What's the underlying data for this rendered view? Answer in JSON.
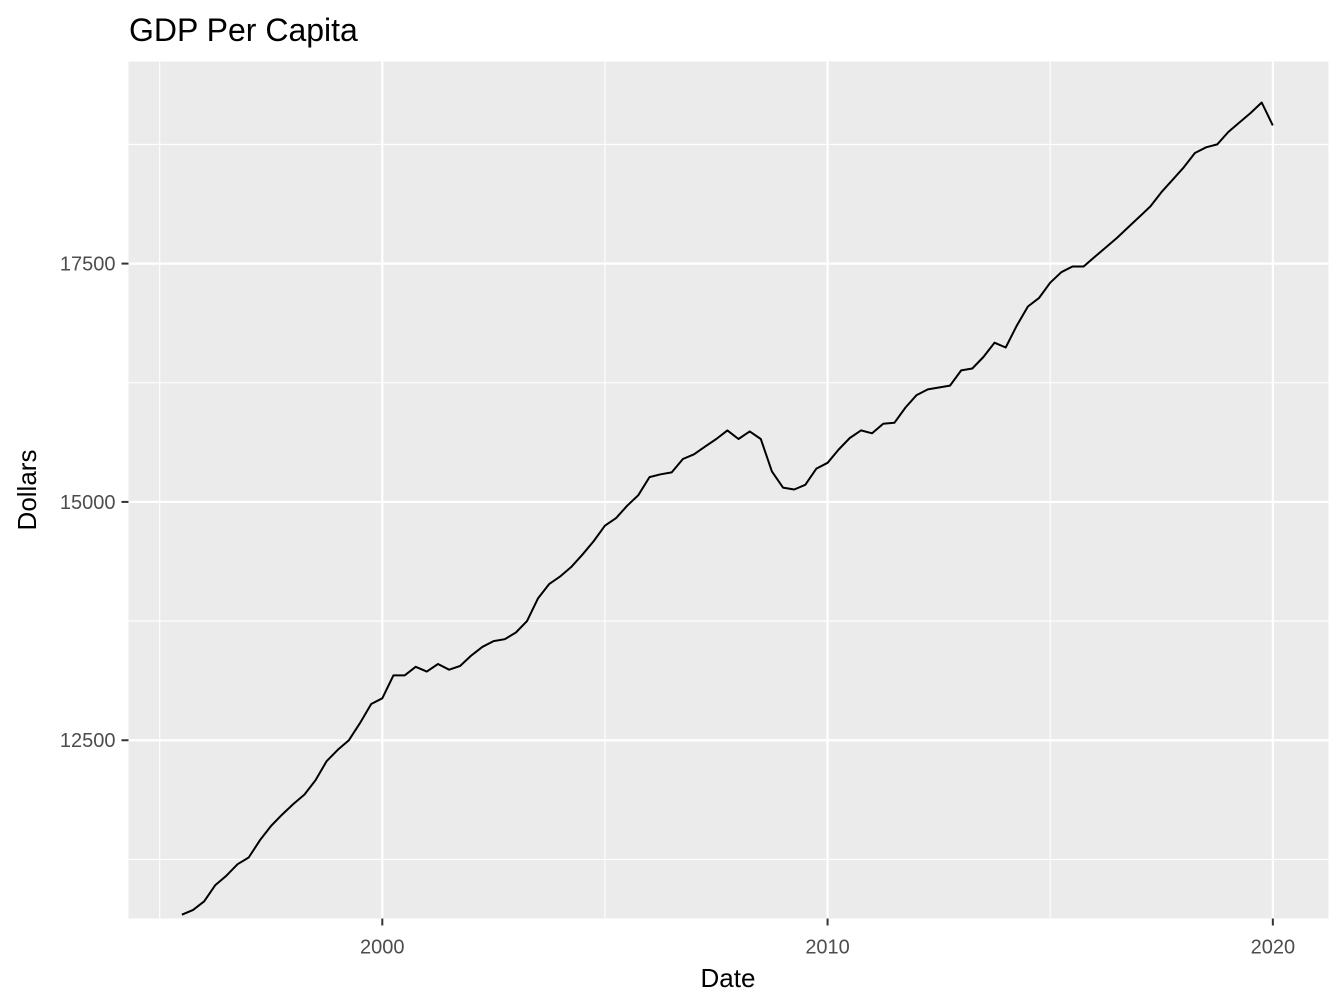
{
  "chart_data": {
    "type": "line",
    "title": "GDP Per Capita",
    "xlabel": "Date",
    "ylabel": "Dollars",
    "x_ticks": [
      2000,
      2010,
      2020
    ],
    "y_ticks": [
      12500,
      15000,
      17500
    ],
    "x_tick_labels": [
      "2000",
      "2010",
      "2020"
    ],
    "y_tick_labels": [
      "12500",
      "15000",
      "17500"
    ],
    "xlim": [
      1994.3,
      2021.25
    ],
    "ylim": [
      10630,
      19620
    ],
    "grid": true,
    "legend": "none",
    "colors": {
      "panel": "#ebebeb",
      "grid": "#ffffff",
      "line": "#000000"
    },
    "series": [
      {
        "x": [
          1995.5,
          1995.75,
          1996.0,
          1996.25,
          1996.5,
          1996.75,
          1997.0,
          1997.25,
          1997.5,
          1997.75,
          1998.0,
          1998.25,
          1998.5,
          1998.75,
          1999.0,
          1999.25,
          1999.5,
          1999.75,
          2000.0,
          2000.25,
          2000.5,
          2000.75,
          2001.0,
          2001.25,
          2001.5,
          2001.75,
          2002.0,
          2002.25,
          2002.5,
          2002.75,
          2003.0,
          2003.25,
          2003.5,
          2003.75,
          2004.0,
          2004.25,
          2004.5,
          2004.75,
          2005.0,
          2005.25,
          2005.5,
          2005.75,
          2006.0,
          2006.25,
          2006.5,
          2006.75,
          2007.0,
          2007.25,
          2007.5,
          2007.75,
          2008.0,
          2008.25,
          2008.5,
          2008.75,
          2009.0,
          2009.25,
          2009.5,
          2009.75,
          2010.0,
          2010.25,
          2010.5,
          2010.75,
          2011.0,
          2011.25,
          2011.5,
          2011.75,
          2012.0,
          2012.25,
          2012.5,
          2012.75,
          2013.0,
          2013.25,
          2013.5,
          2013.75,
          2014.0,
          2014.25,
          2014.5,
          2014.75,
          2015.0,
          2015.25,
          2015.5,
          2015.75,
          2016.0,
          2016.25,
          2016.5,
          2016.75,
          2017.0,
          2017.25,
          2017.5,
          2017.75,
          2018.0,
          2018.25,
          2018.5,
          2018.75,
          2019.0,
          2019.25,
          2019.5,
          2019.75,
          2020.0
        ],
        "y": [
          10670,
          10720,
          10810,
          10980,
          11080,
          11200,
          11270,
          11450,
          11600,
          11720,
          11830,
          11930,
          12080,
          12280,
          12400,
          12500,
          12680,
          12880,
          12940,
          13180,
          13180,
          13270,
          13220,
          13300,
          13240,
          13280,
          13390,
          13480,
          13540,
          13560,
          13630,
          13750,
          13990,
          14140,
          14220,
          14320,
          14450,
          14590,
          14750,
          14830,
          14960,
          15070,
          15260,
          15290,
          15310,
          15450,
          15500,
          15580,
          15660,
          15750,
          15660,
          15740,
          15660,
          15320,
          15150,
          15130,
          15180,
          15350,
          15410,
          15550,
          15670,
          15750,
          15720,
          15820,
          15830,
          15990,
          16120,
          16180,
          16200,
          16220,
          16380,
          16400,
          16520,
          16670,
          16620,
          16850,
          17050,
          17140,
          17300,
          17410,
          17470,
          17470,
          17570,
          17670,
          17770,
          17880,
          17990,
          18100,
          18250,
          18380,
          18510,
          18660,
          18720,
          18750,
          18880,
          18980,
          19080,
          19190,
          18950
        ]
      }
    ]
  }
}
